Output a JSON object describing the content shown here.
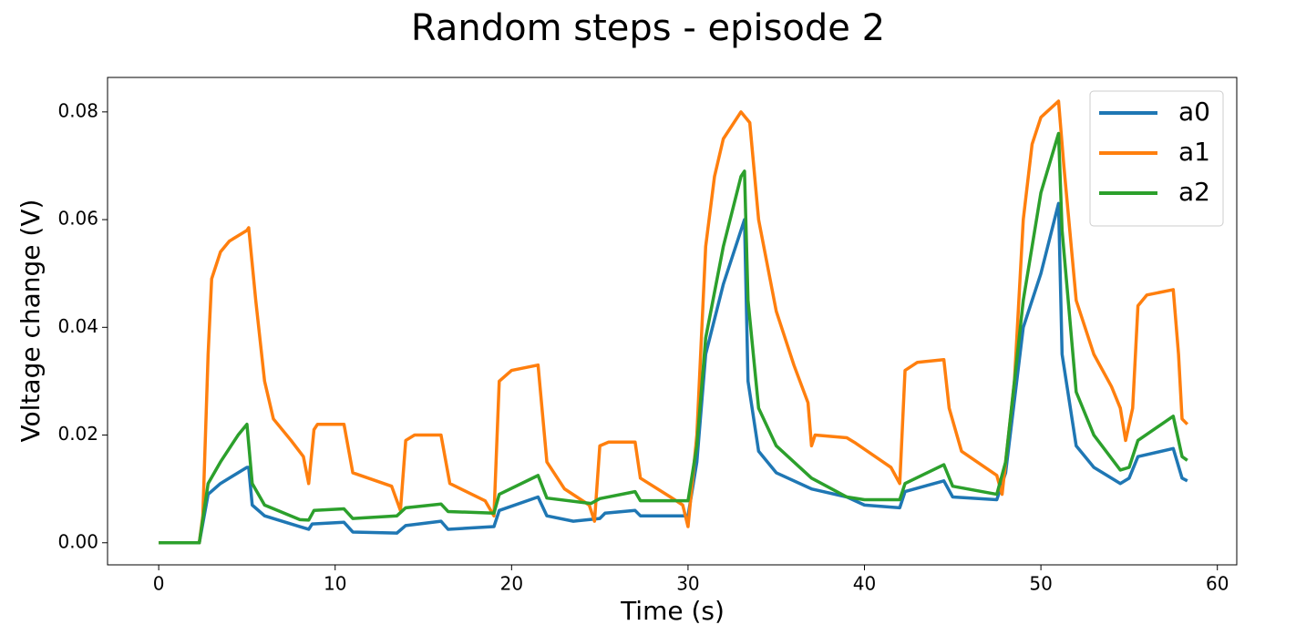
{
  "chart_data": {
    "type": "line",
    "title": "Random steps - episode 2",
    "xlabel": "Time (s)",
    "ylabel": "Voltage change (V)",
    "xlim": [
      -2.9,
      61.1
    ],
    "ylim": [
      -0.0041,
      0.0864
    ],
    "xticks": [
      0,
      10,
      20,
      30,
      40,
      50,
      60
    ],
    "yticks": [
      {
        "value": 0,
        "label": "0.00"
      },
      {
        "value": 0.02,
        "label": "0.02"
      },
      {
        "value": 0.04,
        "label": "0.04"
      },
      {
        "value": 0.06,
        "label": "0.06"
      },
      {
        "value": 0.08,
        "label": "0.08"
      }
    ],
    "grid": false,
    "legend": "upper right",
    "series": [
      {
        "name": "a0",
        "color": "#1f77b4",
        "x": [
          0,
          2.3,
          2.8,
          3.5,
          5.0,
          5.1,
          5.3,
          6,
          8,
          8.5,
          8.7,
          10.5,
          11,
          13.5,
          14,
          16,
          16.4,
          19,
          19.3,
          21.5,
          22,
          23.5,
          25,
          25.3,
          27,
          27.3,
          29.8,
          30,
          30.5,
          31,
          32,
          33,
          33.2,
          33.4,
          34,
          35,
          37,
          39,
          40,
          42,
          42.3,
          44.5,
          45,
          47.5,
          48,
          49,
          50,
          51,
          51.2,
          52,
          53,
          54.5,
          55,
          55.5,
          57.5,
          58,
          58.3
        ],
        "values": [
          0,
          0,
          0.009,
          0.011,
          0.014,
          0.014,
          0.007,
          0.005,
          0.003,
          0.0025,
          0.0035,
          0.0038,
          0.002,
          0.0018,
          0.0032,
          0.004,
          0.0025,
          0.003,
          0.006,
          0.0085,
          0.005,
          0.004,
          0.0045,
          0.0055,
          0.006,
          0.005,
          0.005,
          0.005,
          0.015,
          0.035,
          0.048,
          0.058,
          0.06,
          0.03,
          0.017,
          0.013,
          0.01,
          0.0085,
          0.007,
          0.0065,
          0.0095,
          0.0115,
          0.0085,
          0.008,
          0.013,
          0.04,
          0.05,
          0.063,
          0.035,
          0.018,
          0.014,
          0.011,
          0.012,
          0.016,
          0.0175,
          0.012,
          0.0115
        ]
      },
      {
        "name": "a1",
        "color": "#ff7f0e",
        "x": [
          0,
          2.3,
          2.5,
          2.8,
          3.0,
          3.5,
          4.0,
          5.0,
          5.1,
          5.5,
          6.0,
          6.5,
          7.5,
          8.2,
          8.5,
          8.8,
          9.0,
          10.5,
          11.0,
          13.2,
          13.7,
          14.0,
          14.5,
          16.0,
          16.5,
          18.5,
          19.0,
          19.3,
          20.0,
          21.5,
          22.0,
          23.0,
          24.4,
          24.7,
          25.0,
          25.5,
          27.0,
          27.3,
          29.0,
          29.7,
          30.0,
          30.5,
          31.0,
          31.5,
          32.0,
          33.0,
          33.5,
          34.0,
          35.0,
          36.0,
          36.8,
          37.0,
          37.2,
          39.0,
          39.5,
          41.5,
          42.0,
          42.3,
          43.0,
          44.5,
          44.8,
          45.5,
          47.5,
          47.8,
          48.5,
          49.0,
          49.5,
          50.0,
          51.0,
          51.3,
          52.0,
          53.0,
          54.0,
          54.5,
          54.8,
          55.2,
          55.5,
          56.0,
          57.5,
          57.8,
          58.0,
          58.3
        ],
        "values": [
          0,
          0,
          0.005,
          0.035,
          0.049,
          0.054,
          0.056,
          0.058,
          0.0585,
          0.045,
          0.03,
          0.023,
          0.019,
          0.016,
          0.011,
          0.021,
          0.022,
          0.022,
          0.013,
          0.0105,
          0.006,
          0.019,
          0.02,
          0.02,
          0.011,
          0.0078,
          0.005,
          0.03,
          0.032,
          0.033,
          0.015,
          0.01,
          0.007,
          0.004,
          0.018,
          0.0187,
          0.0187,
          0.012,
          0.0085,
          0.007,
          0.003,
          0.02,
          0.055,
          0.068,
          0.075,
          0.08,
          0.078,
          0.06,
          0.043,
          0.033,
          0.026,
          0.018,
          0.02,
          0.0195,
          0.0185,
          0.014,
          0.011,
          0.032,
          0.0335,
          0.034,
          0.025,
          0.017,
          0.0125,
          0.009,
          0.03,
          0.06,
          0.074,
          0.079,
          0.082,
          0.07,
          0.045,
          0.035,
          0.029,
          0.025,
          0.019,
          0.025,
          0.044,
          0.046,
          0.047,
          0.035,
          0.023,
          0.022
        ]
      },
      {
        "name": "a2",
        "color": "#2ca02c",
        "x": [
          0,
          2.3,
          2.8,
          3.5,
          4.5,
          5.0,
          5.3,
          6,
          8,
          8.5,
          8.8,
          10.5,
          11,
          13.5,
          14,
          16,
          16.4,
          19,
          19.3,
          21.5,
          22,
          24.5,
          25,
          27,
          27.3,
          30,
          30.5,
          31,
          32,
          33,
          33.2,
          33.4,
          34,
          35,
          37,
          39,
          40,
          42,
          42.3,
          44.5,
          45,
          47.5,
          48,
          49,
          50,
          51,
          51.2,
          52,
          53,
          54.5,
          55,
          55.5,
          57.5,
          58,
          58.3
        ],
        "values": [
          0,
          0,
          0.011,
          0.015,
          0.02,
          0.022,
          0.011,
          0.007,
          0.0043,
          0.0042,
          0.006,
          0.0063,
          0.0045,
          0.005,
          0.0065,
          0.0072,
          0.0058,
          0.0055,
          0.009,
          0.0125,
          0.0083,
          0.0073,
          0.0082,
          0.0095,
          0.0078,
          0.0078,
          0.018,
          0.038,
          0.055,
          0.068,
          0.069,
          0.045,
          0.025,
          0.018,
          0.012,
          0.0085,
          0.008,
          0.008,
          0.011,
          0.0145,
          0.0105,
          0.009,
          0.015,
          0.045,
          0.065,
          0.076,
          0.058,
          0.028,
          0.02,
          0.0135,
          0.014,
          0.019,
          0.0235,
          0.016,
          0.0153
        ]
      }
    ]
  }
}
